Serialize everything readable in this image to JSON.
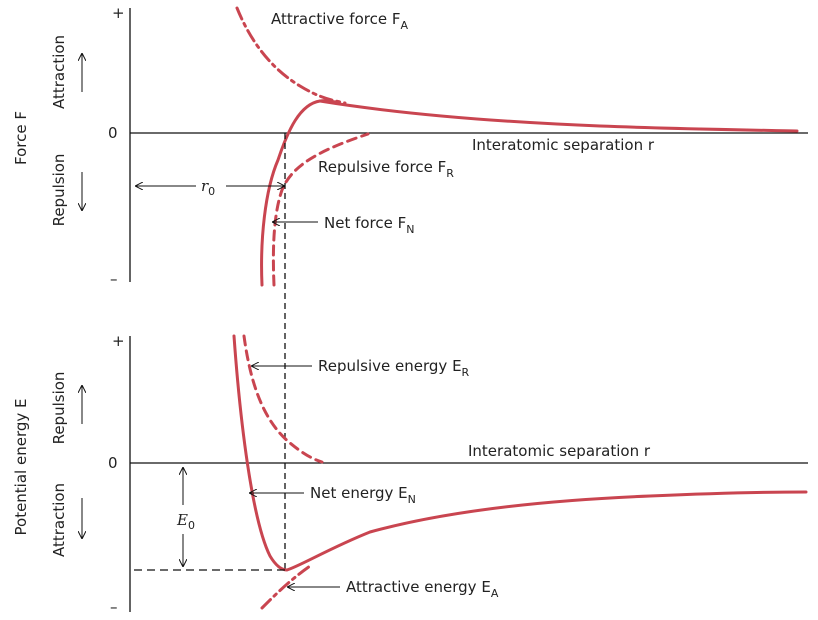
{
  "force_panel": {
    "y_axis_label": "Force F",
    "plus": "+",
    "minus": "–",
    "zero": "0",
    "attraction": "Attraction",
    "repulsion": "Repulsion",
    "x_axis_label": "Interatomic separation r",
    "curves": {
      "attractive": "Attractive force F",
      "attractive_sub": "A",
      "repulsive": "Repulsive force F",
      "repulsive_sub": "R",
      "net": "Net force F",
      "net_sub": "N"
    },
    "r0": "r",
    "r0_sub": "0"
  },
  "energy_panel": {
    "y_axis_label": "Potential energy E",
    "plus": "+",
    "minus": "–",
    "zero": "0",
    "repulsion": "Repulsion",
    "attraction": "Attraction",
    "x_axis_label": "Interatomic separation r",
    "curves": {
      "repulsive": "Repulsive energy E",
      "repulsive_sub": "R",
      "net": "Net energy E",
      "net_sub": "N",
      "attractive": "Attractive energy E",
      "attractive_sub": "A"
    },
    "e0": "E",
    "e0_sub": "0"
  },
  "colors": {
    "curve": "#c94550",
    "axis": "#111111"
  }
}
